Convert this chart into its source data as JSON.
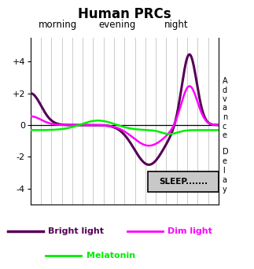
{
  "title": "Human PRCs",
  "title_fontsize": 12,
  "period_labels": [
    "morning",
    "evening",
    "night"
  ],
  "right_label_advance": "A\nd\nv\na\nn\nc\ne",
  "right_label_delay": "D\ne\nl\na\ny",
  "sleep_label": "SLEEP.......",
  "ylim": [
    -5,
    5.5
  ],
  "yticks": [
    -4,
    -2,
    0,
    2,
    4
  ],
  "ytick_labels": [
    "-4",
    "-2",
    "0",
    "+2",
    "+4"
  ],
  "background_color": "#ffffff",
  "plot_bg_color": "#ffffff",
  "grid_color": "#cccccc",
  "bright_light_color": "#550055",
  "dim_light_color": "#ff00ff",
  "melatonin_color": "#00ee00",
  "legend_bright_color": "#550055",
  "legend_dim_color": "#ff00ff",
  "legend_melatonin_color": "#00ee00"
}
